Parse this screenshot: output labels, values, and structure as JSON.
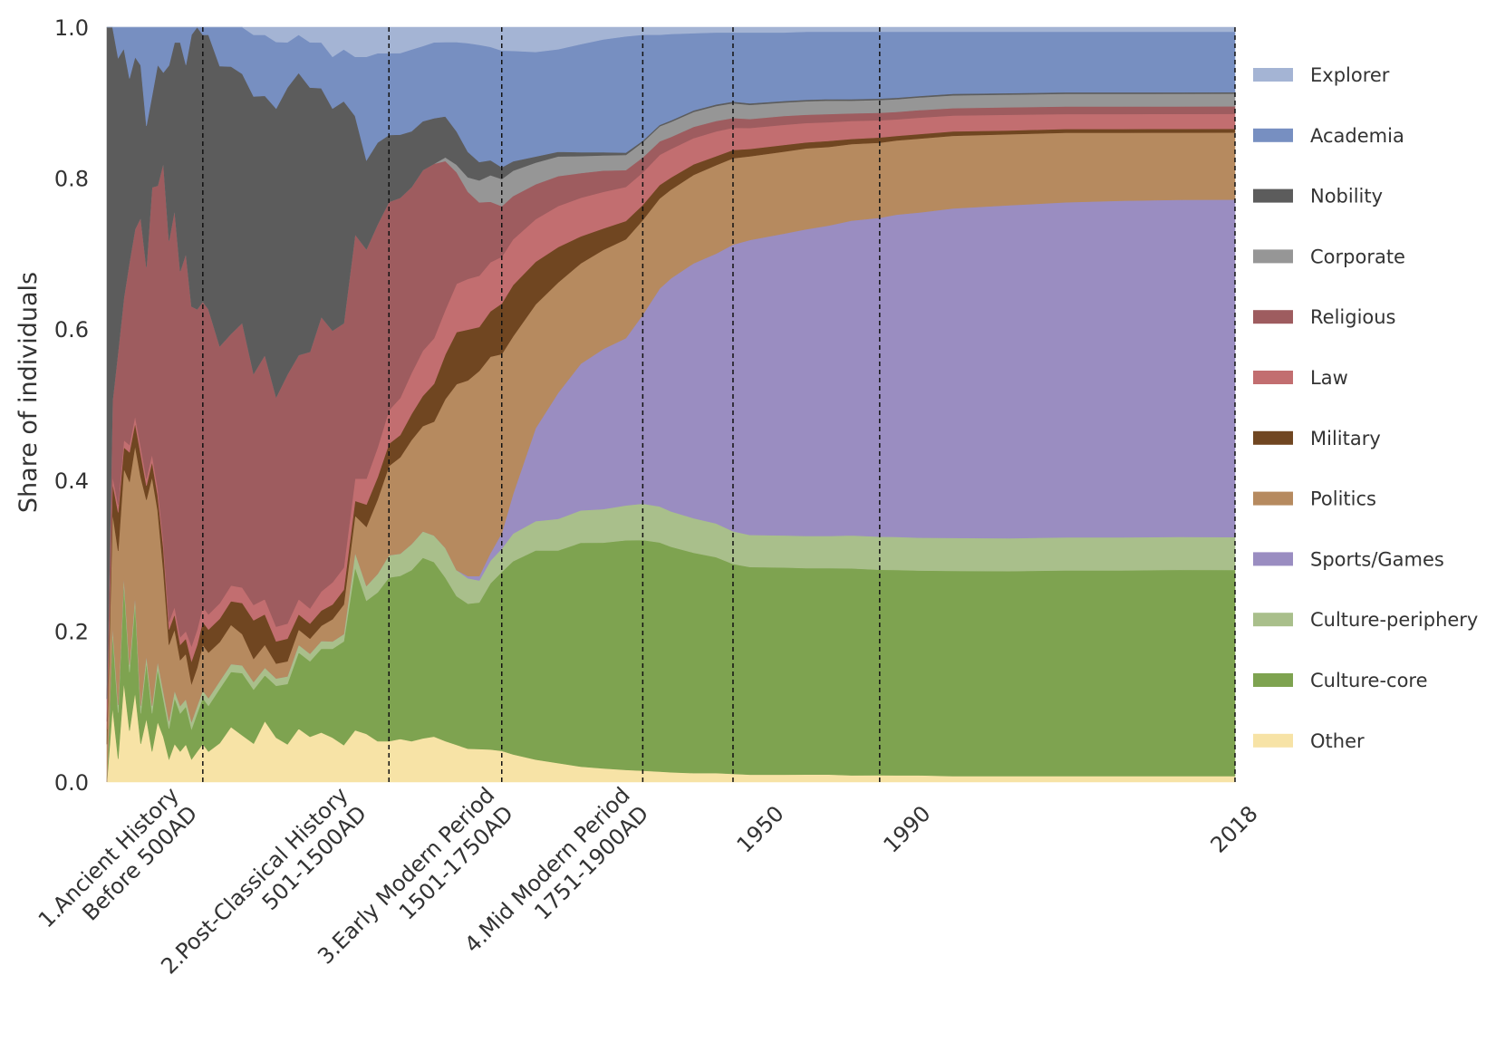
{
  "chart_data": {
    "type": "area",
    "stacked": true,
    "normalized": true,
    "ylabel": "Share of individuals",
    "ylim": [
      0,
      1
    ],
    "yticks": [
      "0.0",
      "0.2",
      "0.4",
      "0.6",
      "0.8",
      "1.0"
    ],
    "x_ticks": [
      {
        "lines": [
          "1.Ancient History",
          "Before 500AD"
        ],
        "x": 6
      },
      {
        "lines": [
          "2.Post-Classical History",
          "501-1500AD"
        ],
        "x": 21
      },
      {
        "lines": [
          "3.Early Modern Period",
          "1501-1750AD"
        ],
        "x": 34
      },
      {
        "lines": [
          "4.Mid Modern Period",
          "1751-1900AD"
        ],
        "x": 46
      },
      {
        "lines": [
          "1950"
        ],
        "x": 58
      },
      {
        "lines": [
          "1990"
        ],
        "x": 71
      },
      {
        "lines": [
          "2018"
        ],
        "x": 100
      }
    ],
    "boundaries": [
      8.5,
      25,
      35,
      47.5,
      55.5,
      68.5,
      100
    ],
    "grid": false,
    "legend_position": "right",
    "x": [
      0,
      0.5,
      1,
      1.5,
      2,
      2.5,
      3,
      3.5,
      4,
      4.5,
      5,
      5.5,
      6,
      6.5,
      7,
      7.5,
      8,
      8.5,
      9,
      10,
      11,
      12,
      13,
      14,
      15,
      16,
      17,
      18,
      19,
      20,
      21,
      22,
      23,
      24,
      25,
      26,
      27,
      28,
      29,
      30,
      31,
      32,
      33,
      34,
      35,
      36,
      38,
      40,
      42,
      44,
      46,
      47.5,
      49,
      50,
      52,
      54,
      55.5,
      57,
      60,
      62,
      64,
      66,
      68.5,
      70,
      72,
      75,
      80,
      85,
      90,
      95,
      100
    ],
    "series": [
      {
        "name": "Other",
        "color": "#f7e3a6",
        "values": [
          0,
          0.1,
          0.03,
          0.14,
          0.07,
          0.12,
          0.05,
          0.09,
          0.04,
          0.08,
          0.06,
          0.03,
          0.05,
          0.04,
          0.05,
          0.03,
          0.04,
          0.05,
          0.04,
          0.05,
          0.07,
          0.06,
          0.05,
          0.08,
          0.06,
          0.05,
          0.07,
          0.06,
          0.065,
          0.06,
          0.05,
          0.07,
          0.065,
          0.055,
          0.055,
          0.058,
          0.055,
          0.058,
          0.06,
          0.055,
          0.05,
          0.046,
          0.045,
          0.043,
          0.04,
          0.035,
          0.029,
          0.024,
          0.02,
          0.018,
          0.016,
          0.015,
          0.014,
          0.013,
          0.012,
          0.012,
          0.011,
          0.01,
          0.01,
          0.01,
          0.01,
          0.009,
          0.009,
          0.009,
          0.009,
          0.008,
          0.008,
          0.008,
          0.008,
          0.008,
          0.008
        ]
      },
      {
        "name": "Culture-core",
        "color": "#7ea350",
        "values": [
          0,
          0.1,
          0.06,
          0.14,
          0.08,
          0.12,
          0.04,
          0.08,
          0.05,
          0.07,
          0.05,
          0.04,
          0.06,
          0.05,
          0.05,
          0.04,
          0.05,
          0.06,
          0.06,
          0.07,
          0.07,
          0.08,
          0.07,
          0.06,
          0.07,
          0.08,
          0.1,
          0.1,
          0.11,
          0.12,
          0.14,
          0.22,
          0.18,
          0.2,
          0.22,
          0.22,
          0.23,
          0.24,
          0.23,
          0.22,
          0.2,
          0.2,
          0.2,
          0.22,
          0.23,
          0.245,
          0.27,
          0.27,
          0.29,
          0.296,
          0.302,
          0.305,
          0.305,
          0.3,
          0.294,
          0.288,
          0.282,
          0.278,
          0.278,
          0.276,
          0.276,
          0.276,
          0.274,
          0.274,
          0.274,
          0.274,
          0.274,
          0.275,
          0.275,
          0.276,
          0.276
        ]
      },
      {
        "name": "Culture-periphery",
        "color": "#a9bf8b",
        "values": [
          0,
          0.01,
          0.01,
          0.01,
          0.01,
          0.01,
          0.01,
          0.01,
          0.01,
          0.01,
          0.01,
          0.01,
          0.01,
          0.01,
          0.01,
          0.01,
          0.01,
          0.01,
          0.01,
          0.01,
          0.01,
          0.01,
          0.01,
          0.01,
          0.01,
          0.01,
          0.01,
          0.01,
          0.01,
          0.01,
          0.01,
          0.02,
          0.02,
          0.025,
          0.03,
          0.03,
          0.035,
          0.035,
          0.035,
          0.04,
          0.035,
          0.035,
          0.03,
          0.03,
          0.03,
          0.035,
          0.038,
          0.04,
          0.042,
          0.044,
          0.046,
          0.048,
          0.048,
          0.047,
          0.046,
          0.045,
          0.044,
          0.043,
          0.043,
          0.043,
          0.043,
          0.044,
          0.044,
          0.044,
          0.044,
          0.044,
          0.044,
          0.044,
          0.044,
          0.044,
          0.044
        ]
      },
      {
        "name": "Sports/Games",
        "color": "#9a8dc1",
        "values": [
          0,
          0,
          0,
          0,
          0,
          0,
          0,
          0,
          0,
          0,
          0,
          0,
          0,
          0,
          0,
          0,
          0,
          0,
          0,
          0,
          0,
          0,
          0,
          0,
          0,
          0,
          0,
          0,
          0,
          0,
          0,
          0,
          0,
          0,
          0,
          0,
          0,
          0,
          0,
          0,
          0,
          0.003,
          0.006,
          0.01,
          0.02,
          0.05,
          0.12,
          0.16,
          0.19,
          0.21,
          0.22,
          0.25,
          0.29,
          0.31,
          0.34,
          0.36,
          0.385,
          0.395,
          0.405,
          0.41,
          0.415,
          0.42,
          0.425,
          0.43,
          0.435,
          0.44,
          0.445,
          0.448,
          0.45,
          0.451,
          0.452
        ]
      },
      {
        "name": "Politics",
        "color": "#b68a5f",
        "values": [
          0.05,
          0.15,
          0.2,
          0.15,
          0.25,
          0.2,
          0.3,
          0.22,
          0.3,
          0.2,
          0.16,
          0.1,
          0.08,
          0.06,
          0.06,
          0.05,
          0.05,
          0.06,
          0.06,
          0.05,
          0.05,
          0.04,
          0.03,
          0.03,
          0.02,
          0.02,
          0.02,
          0.02,
          0.02,
          0.03,
          0.04,
          0.05,
          0.08,
          0.1,
          0.12,
          0.13,
          0.14,
          0.14,
          0.15,
          0.2,
          0.25,
          0.27,
          0.28,
          0.26,
          0.23,
          0.2,
          0.16,
          0.14,
          0.13,
          0.13,
          0.13,
          0.125,
          0.12,
          0.118,
          0.118,
          0.118,
          0.116,
          0.112,
          0.11,
          0.108,
          0.105,
          0.102,
          0.1,
          0.099,
          0.099,
          0.097,
          0.095,
          0.093,
          0.091,
          0.09,
          0.09
        ]
      },
      {
        "name": "Military",
        "color": "#704621",
        "values": [
          0.02,
          0.04,
          0.05,
          0.03,
          0.04,
          0.03,
          0.03,
          0.02,
          0.02,
          0.02,
          0.03,
          0.02,
          0.02,
          0.02,
          0.02,
          0.03,
          0.03,
          0.03,
          0.03,
          0.03,
          0.03,
          0.04,
          0.05,
          0.04,
          0.03,
          0.03,
          0.02,
          0.02,
          0.02,
          0.02,
          0.02,
          0.02,
          0.03,
          0.03,
          0.03,
          0.03,
          0.035,
          0.04,
          0.05,
          0.06,
          0.07,
          0.07,
          0.06,
          0.06,
          0.065,
          0.065,
          0.055,
          0.045,
          0.035,
          0.028,
          0.024,
          0.02,
          0.018,
          0.016,
          0.014,
          0.012,
          0.011,
          0.01,
          0.009,
          0.008,
          0.008,
          0.007,
          0.007,
          0.006,
          0.006,
          0.006,
          0.005,
          0.005,
          0.005,
          0.005,
          0.005
        ]
      },
      {
        "name": "Law",
        "color": "#c26e70",
        "values": [
          0.01,
          0.01,
          0.01,
          0.01,
          0.01,
          0.01,
          0.01,
          0.01,
          0.01,
          0.01,
          0.01,
          0.01,
          0.01,
          0.01,
          0.01,
          0.02,
          0.02,
          0.02,
          0.02,
          0.02,
          0.02,
          0.02,
          0.02,
          0.02,
          0.02,
          0.02,
          0.02,
          0.02,
          0.025,
          0.03,
          0.03,
          0.03,
          0.035,
          0.04,
          0.045,
          0.05,
          0.055,
          0.06,
          0.06,
          0.06,
          0.065,
          0.07,
          0.07,
          0.065,
          0.06,
          0.058,
          0.055,
          0.052,
          0.05,
          0.048,
          0.045,
          0.043,
          0.04,
          0.038,
          0.035,
          0.033,
          0.03,
          0.028,
          0.027,
          0.026,
          0.025,
          0.024,
          0.023,
          0.022,
          0.022,
          0.021,
          0.021,
          0.02,
          0.02,
          0.02,
          0.02
        ]
      },
      {
        "name": "Religious",
        "color": "#9e5c5f",
        "values": [
          0.03,
          0.1,
          0.2,
          0.2,
          0.25,
          0.25,
          0.3,
          0.3,
          0.35,
          0.4,
          0.5,
          0.5,
          0.52,
          0.48,
          0.5,
          0.45,
          0.42,
          0.4,
          0.4,
          0.33,
          0.32,
          0.34,
          0.3,
          0.32,
          0.31,
          0.33,
          0.32,
          0.34,
          0.36,
          0.34,
          0.33,
          0.33,
          0.31,
          0.3,
          0.28,
          0.27,
          0.25,
          0.24,
          0.23,
          0.2,
          0.15,
          0.12,
          0.1,
          0.08,
          0.065,
          0.055,
          0.045,
          0.038,
          0.032,
          0.028,
          0.022,
          0.02,
          0.018,
          0.016,
          0.015,
          0.014,
          0.013,
          0.012,
          0.012,
          0.011,
          0.011,
          0.01,
          0.01,
          0.01,
          0.01,
          0.01,
          0.01,
          0.01,
          0.01,
          0.01,
          0.01
        ]
      },
      {
        "name": "Corporate",
        "color": "#969696",
        "values": [
          0,
          0,
          0,
          0,
          0,
          0,
          0,
          0,
          0,
          0,
          0,
          0,
          0,
          0,
          0,
          0,
          0,
          0,
          0,
          0,
          0,
          0,
          0,
          0,
          0,
          0,
          0,
          0,
          0,
          0,
          0,
          0,
          0,
          0,
          0,
          0,
          0,
          0,
          0,
          0.005,
          0.01,
          0.02,
          0.03,
          0.035,
          0.035,
          0.032,
          0.028,
          0.025,
          0.022,
          0.02,
          0.02,
          0.02,
          0.02,
          0.02,
          0.02,
          0.02,
          0.02,
          0.019,
          0.018,
          0.018,
          0.018,
          0.017,
          0.017,
          0.017,
          0.017,
          0.017,
          0.017,
          0.017,
          0.017,
          0.017,
          0.017
        ]
      },
      {
        "name": "Nobility",
        "color": "#5c5c5c",
        "values": [
          0.89,
          0.5,
          0.38,
          0.35,
          0.25,
          0.23,
          0.2,
          0.2,
          0.12,
          0.16,
          0.12,
          0.23,
          0.22,
          0.3,
          0.25,
          0.36,
          0.37,
          0.35,
          0.36,
          0.36,
          0.34,
          0.32,
          0.36,
          0.34,
          0.39,
          0.38,
          0.37,
          0.35,
          0.3,
          0.3,
          0.3,
          0.16,
          0.12,
          0.11,
          0.09,
          0.085,
          0.075,
          0.065,
          0.06,
          0.055,
          0.045,
          0.035,
          0.025,
          0.02,
          0.015,
          0.012,
          0.008,
          0.006,
          0.005,
          0.004,
          0.003,
          0.002,
          0.002,
          0.002,
          0.002,
          0.002,
          0.002,
          0.002,
          0.002,
          0.002,
          0.002,
          0.002,
          0.002,
          0.002,
          0.002,
          0.002,
          0.002,
          0.002,
          0.002,
          0.002,
          0.002
        ]
      },
      {
        "name": "Academia",
        "color": "#778fc1",
        "values": [
          0,
          0,
          0.04,
          0.03,
          0.07,
          0.04,
          0.05,
          0.14,
          0.09,
          0.05,
          0.06,
          0.05,
          0.02,
          0.02,
          0.05,
          0.01,
          0,
          0.01,
          0.01,
          0.05,
          0.05,
          0.06,
          0.08,
          0.08,
          0.09,
          0.06,
          0.05,
          0.06,
          0.06,
          0.07,
          0.07,
          0.08,
          0.14,
          0.12,
          0.11,
          0.11,
          0.11,
          0.1,
          0.1,
          0.1,
          0.12,
          0.15,
          0.16,
          0.15,
          0.15,
          0.14,
          0.135,
          0.13,
          0.14,
          0.148,
          0.153,
          0.14,
          0.12,
          0.115,
          0.103,
          0.096,
          0.093,
          0.095,
          0.092,
          0.091,
          0.09,
          0.09,
          0.089,
          0.088,
          0.086,
          0.083,
          0.082,
          0.081,
          0.081,
          0.081,
          0.081
        ]
      },
      {
        "name": "Explorer",
        "color": "#a4b4d4",
        "values": [
          0,
          0,
          0,
          0,
          0,
          0,
          0,
          0,
          0,
          0,
          0,
          0,
          0,
          0,
          0,
          0,
          0,
          0,
          0,
          0,
          0,
          0,
          0.01,
          0.01,
          0.02,
          0.02,
          0.01,
          0.02,
          0.02,
          0.04,
          0.03,
          0.04,
          0.04,
          0.035,
          0.035,
          0.035,
          0.03,
          0.025,
          0.02,
          0.02,
          0.02,
          0.022,
          0.024,
          0.026,
          0.03,
          0.03,
          0.032,
          0.028,
          0.022,
          0.016,
          0.012,
          0.01,
          0.01,
          0.009,
          0.008,
          0.007,
          0.007,
          0.007,
          0.007,
          0.006,
          0.006,
          0.006,
          0.006,
          0.006,
          0.006,
          0.006,
          0.006,
          0.006,
          0.006,
          0.006,
          0.006
        ]
      }
    ]
  }
}
